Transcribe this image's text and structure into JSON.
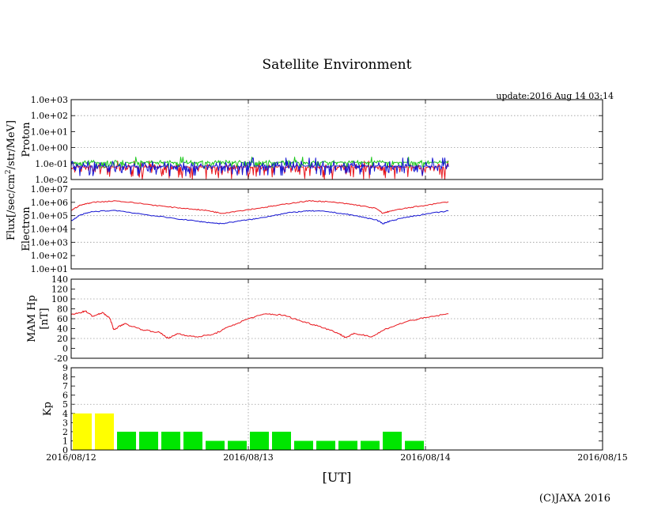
{
  "page": {
    "title": "Satellite Environment",
    "update": "update:2016 Aug 14 03:14",
    "copyright": "(C)JAXA 2016",
    "xlabel": "[UT]",
    "shared_ylabel_prefix": "Flux[/sec/cm",
    "shared_ylabel_sup": "2",
    "shared_ylabel_suffix": "/str/MeV]"
  },
  "colors": {
    "red": "#e8151b",
    "green": "#1ec81e",
    "blue": "#1414d2",
    "kp_yellow": "#ffff00",
    "kp_green": "#00e600",
    "grid": "#9a9a9a"
  },
  "chart_data": [
    {
      "id": "proton",
      "type": "line",
      "ylabel": "Proton",
      "yscale": "log",
      "ylim": [
        0.01,
        1000
      ],
      "yticks": [
        "1.0e-02",
        "1.0e-01",
        "1.0e+00",
        "1.0e+01",
        "1.0e+02",
        "1.0e+03"
      ],
      "xlim": [
        0,
        3
      ],
      "x_end": 2.13,
      "series": [
        {
          "name": "proton-ch1",
          "color": "red",
          "baseline": 0.06,
          "noise_low": 0.01,
          "noise_high": 0.09
        },
        {
          "name": "proton-ch2",
          "color": "green",
          "baseline": 0.12,
          "noise_low": 0.05,
          "noise_high": 0.16
        },
        {
          "name": "proton-ch3",
          "color": "blue",
          "baseline": 0.07,
          "noise_low": 0.015,
          "noise_high": 0.14
        }
      ]
    },
    {
      "id": "electron",
      "type": "line",
      "ylabel": "Electron",
      "yscale": "log",
      "ylim": [
        10,
        10000000
      ],
      "yticks": [
        "1.0e+01",
        "1.0e+02",
        "1.0e+03",
        "1.0e+04",
        "1.0e+05",
        "1.0e+06",
        "1.0e+07"
      ],
      "xlim": [
        0,
        3
      ],
      "series": [
        {
          "name": "electron-high",
          "color": "red",
          "x": [
            0,
            0.05,
            0.12,
            0.25,
            0.4,
            0.55,
            0.7,
            0.78,
            0.85,
            0.95,
            1.05,
            1.15,
            1.25,
            1.35,
            1.45,
            1.55,
            1.62,
            1.72,
            1.76,
            1.8,
            1.9,
            2.0,
            2.13
          ],
          "y": [
            250000,
            600000,
            1000000,
            1300000,
            800000,
            450000,
            300000,
            230000,
            150000,
            230000,
            350000,
            550000,
            900000,
            1300000,
            1100000,
            800000,
            600000,
            350000,
            150000,
            220000,
            380000,
            600000,
            1100000
          ]
        },
        {
          "name": "electron-low",
          "color": "blue",
          "x": [
            0,
            0.05,
            0.12,
            0.25,
            0.4,
            0.55,
            0.7,
            0.78,
            0.85,
            0.95,
            1.05,
            1.15,
            1.25,
            1.35,
            1.45,
            1.55,
            1.62,
            1.72,
            1.76,
            1.8,
            1.9,
            2.0,
            2.13
          ],
          "y": [
            40000,
            110000,
            200000,
            250000,
            130000,
            70000,
            40000,
            30000,
            25000,
            40000,
            60000,
            110000,
            180000,
            230000,
            200000,
            130000,
            90000,
            50000,
            25000,
            40000,
            80000,
            130000,
            230000
          ]
        }
      ]
    },
    {
      "id": "mam-hp",
      "type": "line",
      "ylabel": "MAM Hp",
      "ylabel2": "[nT]",
      "ylim": [
        -20,
        140
      ],
      "yticks": [
        "-20",
        "0",
        "20",
        "40",
        "60",
        "80",
        "100",
        "120",
        "140"
      ],
      "xlim": [
        0,
        3
      ],
      "series": [
        {
          "name": "hp",
          "color": "red",
          "x": [
            0,
            0.05,
            0.08,
            0.12,
            0.18,
            0.22,
            0.24,
            0.3,
            0.4,
            0.5,
            0.55,
            0.6,
            0.7,
            0.8,
            0.9,
            1.0,
            1.1,
            1.2,
            1.3,
            1.4,
            1.5,
            1.55,
            1.6,
            1.7,
            1.78,
            1.9,
            2.0,
            2.13
          ],
          "y": [
            68,
            72,
            76,
            65,
            72,
            60,
            38,
            50,
            38,
            32,
            20,
            30,
            23,
            28,
            45,
            60,
            70,
            67,
            55,
            45,
            32,
            22,
            30,
            24,
            40,
            55,
            62,
            70
          ]
        }
      ]
    },
    {
      "id": "kp",
      "type": "bar",
      "ylabel": "Kp",
      "ylim": [
        0,
        9
      ],
      "yticks": [
        "0",
        "1",
        "2",
        "3",
        "4",
        "5",
        "6",
        "7",
        "8",
        "9"
      ],
      "xlim": [
        0,
        3
      ],
      "bar_width_days": 0.125,
      "threshold_line": 5,
      "values": [
        4,
        4,
        2,
        2,
        2,
        2,
        1,
        1,
        2,
        2,
        1,
        1,
        1,
        1,
        2,
        1
      ],
      "colors": [
        "kp_yellow",
        "kp_yellow",
        "kp_green",
        "kp_green",
        "kp_green",
        "kp_green",
        "kp_green",
        "kp_green",
        "kp_green",
        "kp_green",
        "kp_green",
        "kp_green",
        "kp_green",
        "kp_green",
        "kp_green",
        "kp_green"
      ]
    }
  ],
  "xaxis": {
    "ticks": [
      "2016/08/12",
      "2016/08/13",
      "2016/08/14",
      "2016/08/15"
    ],
    "tick_values": [
      0,
      1,
      2,
      3
    ]
  }
}
